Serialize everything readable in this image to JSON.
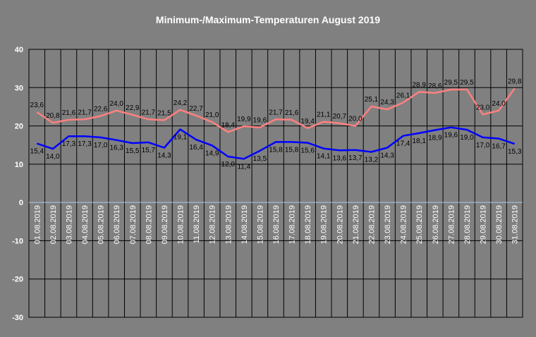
{
  "chart_data": {
    "type": "line",
    "title": "Minimum-/Maximum-Temperaturen August 2019",
    "xlabel": "",
    "ylabel": "",
    "ylim": [
      -30,
      40
    ],
    "yticks": [
      -30,
      -20,
      -10,
      0,
      10,
      20,
      30,
      40
    ],
    "grid": true,
    "legend": "none",
    "categories": [
      "01.08.2019",
      "02.08.2019",
      "03.08.2019",
      "04.08.2019",
      "05.08.2019",
      "06.08.2019",
      "07.08.2019",
      "08.08.2019",
      "09.08.2019",
      "10.08.2019",
      "11.08.2019",
      "12.08.2019",
      "13.08.2019",
      "14.08.2019",
      "15.08.2019",
      "16.08.2019",
      "17.08.2019",
      "18.08.2019",
      "19.08.2019",
      "20.08.2019",
      "21.08.2019",
      "22.08.2019",
      "23.08.2019",
      "24.08.2019",
      "25.08.2019",
      "26.08.2019",
      "27.08.2019",
      "28.08.2019",
      "29.08.2019",
      "30.08.2019",
      "31.08.2019"
    ],
    "series": [
      {
        "color": "#ff8080",
        "values": [
          23.6,
          20.8,
          21.6,
          21.7,
          22.6,
          24.0,
          22.9,
          21.7,
          21.5,
          24.2,
          22.7,
          21.0,
          18.4,
          19.9,
          19.6,
          21.7,
          21.6,
          19.4,
          21.1,
          20.7,
          20.0,
          25.1,
          24.3,
          26.1,
          28.9,
          28.6,
          29.5,
          29.5,
          23.0,
          24.0,
          29.8
        ],
        "labels": [
          "23,6",
          "20,8",
          "21,6",
          "21,7",
          "22,6",
          "24,0",
          "22,9",
          "21,7",
          "21,5",
          "24,2",
          "22,7",
          "21,0",
          "18,4",
          "19,9",
          "19,6",
          "21,7",
          "21,6",
          "19,4",
          "21,1",
          "20,7",
          "20,0",
          "25,1",
          "24,3",
          "26,1",
          "28,9",
          "28,6",
          "29,5",
          "29,5",
          "23,0",
          "24,0",
          "29,8"
        ]
      },
      {
        "color": "#0000ff",
        "values": [
          15.4,
          14.0,
          17.3,
          17.3,
          17.0,
          16.3,
          15.5,
          15.7,
          14.3,
          19.1,
          16.4,
          14.9,
          12.0,
          11.4,
          13.5,
          15.8,
          15.8,
          15.6,
          14.1,
          13.6,
          13.7,
          13.2,
          14.3,
          17.4,
          18.1,
          18.9,
          19.6,
          19.0,
          17.0,
          16.7,
          15.3
        ],
        "labels": [
          "15,4",
          "14,0",
          "17,3",
          "17,3",
          "17,0",
          "16,3",
          "15,5",
          "15,7",
          "14,3",
          "19,1",
          "16,4",
          "14,9",
          "12,0",
          "11,4",
          "13,5",
          "15,8",
          "15,8",
          "15,6",
          "14,1",
          "13,6",
          "13,7",
          "13,2",
          "14,3",
          "17,4",
          "18,1",
          "18,9",
          "19,6",
          "19,0",
          "17,0",
          "16,7",
          "15,3"
        ]
      }
    ]
  }
}
